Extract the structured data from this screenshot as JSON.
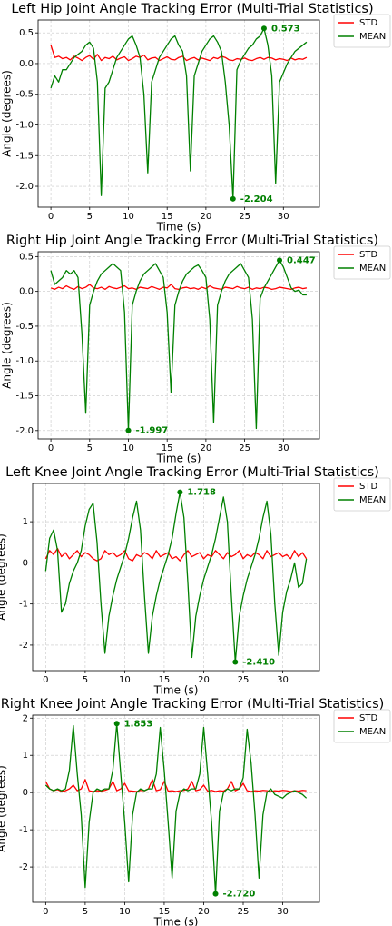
{
  "chart_data": [
    {
      "type": "line",
      "title": "Left Hip Joint Angle Tracking Error (Multi-Trial Statistics)",
      "x_label": "Time (s)",
      "y_label": "Angle (degrees)",
      "grid": true,
      "legend": "right",
      "xlim": [
        -1.65,
        34.65
      ],
      "xticks": [
        0,
        5,
        10,
        15,
        20,
        25,
        30
      ],
      "ylim": [
        -2.34,
        0.71
      ],
      "yticks": [
        0.5,
        {
          "value": 0,
          "label": "0.0"
        },
        -0.5,
        {
          "value": -1,
          "label": "-1.0"
        },
        -1.5,
        {
          "value": -2,
          "label": "-2.0"
        }
      ],
      "x": [
        0,
        0.5,
        1,
        1.5,
        2,
        2.5,
        3,
        3.5,
        4,
        4.5,
        5,
        5.5,
        6,
        6.5,
        7,
        7.5,
        8,
        8.5,
        9,
        9.5,
        10,
        10.5,
        11,
        11.5,
        12,
        12.5,
        13,
        13.5,
        14,
        14.5,
        15,
        15.5,
        16,
        16.5,
        17,
        17.5,
        18,
        18.5,
        19,
        19.5,
        20,
        20.5,
        21,
        21.5,
        22,
        22.5,
        23,
        23.5,
        24,
        24.5,
        25,
        25.5,
        26,
        26.5,
        27,
        27.5,
        28,
        28.5,
        29,
        29.5,
        30,
        30.5,
        31,
        31.5,
        32,
        32.5,
        33
      ],
      "series": [
        {
          "name": "STD",
          "color": "#ff0000",
          "values": [
            0.3,
            0.1,
            0.12,
            0.08,
            0.1,
            0.06,
            0.12,
            0.09,
            0.05,
            0.1,
            0.13,
            0.07,
            0.15,
            0.05,
            0.1,
            0.08,
            0.12,
            0.06,
            0.09,
            0.11,
            0.05,
            0.08,
            0.12,
            0.1,
            0.14,
            0.06,
            0.09,
            0.1,
            0.05,
            0.08,
            0.11,
            0.07,
            0.06,
            0.1,
            0.12,
            0.05,
            0.08,
            0.1,
            0.06,
            0.09,
            0.07,
            0.05,
            0.1,
            0.08,
            0.12,
            0.1,
            0.06,
            0.05,
            0.08,
            0.07,
            0.09,
            0.06,
            0.05,
            0.08,
            0.1,
            0.07,
            0.1,
            0.09,
            0.06,
            0.08,
            0.07,
            0.05,
            0.09,
            0.06,
            0.08,
            0.07,
            0.1
          ]
        },
        {
          "name": "MEAN",
          "color": "#008000",
          "values": [
            -0.4,
            -0.2,
            -0.3,
            -0.1,
            -0.1,
            0.0,
            0.1,
            0.15,
            0.2,
            0.3,
            0.35,
            0.25,
            -0.3,
            -2.15,
            -0.4,
            -0.3,
            -0.1,
            0.1,
            0.2,
            0.3,
            0.4,
            0.45,
            0.3,
            0.1,
            -0.5,
            -1.78,
            -0.3,
            -0.1,
            0.1,
            0.2,
            0.3,
            0.4,
            0.45,
            0.3,
            0.2,
            -0.2,
            -1.75,
            -0.2,
            0.0,
            0.2,
            0.3,
            0.4,
            0.45,
            0.35,
            0.2,
            -0.3,
            -1.0,
            -2.204,
            -0.1,
            0.05,
            0.15,
            0.25,
            0.3,
            0.4,
            0.45,
            0.573,
            0.3,
            -0.2,
            -1.95,
            -0.3,
            -0.15,
            0.0,
            0.1,
            0.2,
            0.25,
            0.3,
            0.35
          ]
        }
      ],
      "annotations": [
        {
          "x": 27.5,
          "y": 0.573
        },
        {
          "x": 23.5,
          "y": -2.204
        }
      ]
    },
    {
      "type": "line",
      "title": "Right Hip Joint Angle Tracking Error (Multi-Trial Statistics)",
      "x_label": "Time (s)",
      "y_label": "Angle (degrees)",
      "grid": true,
      "legend": "right",
      "xlim": [
        -1.65,
        34.65
      ],
      "xticks": [
        0,
        5,
        10,
        15,
        20,
        25,
        30
      ],
      "ylim": [
        -2.12,
        0.57
      ],
      "yticks": [
        0.5,
        {
          "value": 0,
          "label": "0.0"
        },
        -0.5,
        {
          "value": -1,
          "label": "-1.0"
        },
        -1.5,
        {
          "value": -2,
          "label": "-2.0"
        }
      ],
      "x": [
        0,
        0.5,
        1,
        1.5,
        2,
        2.5,
        3,
        3.5,
        4,
        4.5,
        5,
        5.5,
        6,
        6.5,
        7,
        7.5,
        8,
        8.5,
        9,
        9.5,
        10,
        10.5,
        11,
        11.5,
        12,
        12.5,
        13,
        13.5,
        14,
        14.5,
        15,
        15.5,
        16,
        16.5,
        17,
        17.5,
        18,
        18.5,
        19,
        19.5,
        20,
        20.5,
        21,
        21.5,
        22,
        22.5,
        23,
        23.5,
        24,
        24.5,
        25,
        25.5,
        26,
        26.5,
        27,
        27.5,
        28,
        28.5,
        29,
        29.5,
        30,
        30.5,
        31,
        31.5,
        32,
        32.5,
        33
      ],
      "series": [
        {
          "name": "STD",
          "color": "#ff0000",
          "values": [
            0.05,
            0.03,
            0.06,
            0.04,
            0.08,
            0.05,
            0.03,
            0.07,
            0.04,
            0.06,
            0.1,
            0.05,
            0.04,
            0.06,
            0.03,
            0.07,
            0.05,
            0.04,
            0.06,
            0.08,
            0.04,
            0.05,
            0.03,
            0.06,
            0.05,
            0.04,
            0.07,
            0.05,
            0.03,
            0.06,
            0.05,
            0.1,
            0.04,
            0.03,
            0.05,
            0.06,
            0.04,
            0.05,
            0.03,
            0.06,
            0.04,
            0.08,
            0.05,
            0.04,
            0.03,
            0.06,
            0.05,
            0.04,
            0.07,
            0.05,
            0.04,
            0.06,
            0.03,
            0.05,
            0.04,
            0.06,
            0.05,
            0.03,
            0.04,
            0.06,
            0.05,
            0.04,
            0.03,
            0.05,
            0.06,
            0.04,
            0.05
          ]
        },
        {
          "name": "MEAN",
          "color": "#008000",
          "values": [
            0.3,
            0.1,
            0.15,
            0.2,
            0.3,
            0.25,
            0.3,
            0.2,
            -0.6,
            -1.75,
            -0.2,
            0.0,
            0.15,
            0.25,
            0.3,
            0.35,
            0.4,
            0.35,
            0.3,
            -0.3,
            -1.997,
            -0.2,
            0.0,
            0.15,
            0.25,
            0.3,
            0.35,
            0.4,
            0.3,
            0.2,
            -0.3,
            -1.45,
            -0.2,
            0.0,
            0.15,
            0.25,
            0.3,
            0.35,
            0.38,
            0.3,
            0.2,
            -0.4,
            -1.88,
            -0.2,
            0.0,
            0.15,
            0.25,
            0.3,
            0.35,
            0.4,
            0.3,
            0.2,
            -0.4,
            -1.97,
            -0.1,
            0.05,
            0.15,
            0.25,
            0.35,
            0.447,
            0.35,
            0.2,
            0.05,
            0.0,
            0.02,
            -0.05,
            -0.05
          ]
        }
      ],
      "annotations": [
        {
          "x": 29.5,
          "y": 0.447
        },
        {
          "x": 10,
          "y": -1.997
        }
      ]
    },
    {
      "type": "line",
      "title": "Left Knee Joint Angle Tracking Error (Multi-Trial Statistics)",
      "x_label": "Time (s)",
      "y_label": "Angle (degrees)",
      "grid": true,
      "legend": "right",
      "xlim": [
        -1.65,
        34.65
      ],
      "xticks": [
        0,
        5,
        10,
        15,
        20,
        25,
        30
      ],
      "ylim": [
        -2.62,
        1.93
      ],
      "yticks": [
        1,
        0,
        -1,
        -2
      ],
      "x": [
        0,
        0.5,
        1,
        1.5,
        2,
        2.5,
        3,
        3.5,
        4,
        4.5,
        5,
        5.5,
        6,
        6.5,
        7,
        7.5,
        8,
        8.5,
        9,
        9.5,
        10,
        10.5,
        11,
        11.5,
        12,
        12.5,
        13,
        13.5,
        14,
        14.5,
        15,
        15.5,
        16,
        16.5,
        17,
        17.5,
        18,
        18.5,
        19,
        19.5,
        20,
        20.5,
        21,
        21.5,
        22,
        22.5,
        23,
        23.5,
        24,
        24.5,
        25,
        25.5,
        26,
        26.5,
        27,
        27.5,
        28,
        28.5,
        29,
        29.5,
        30,
        30.5,
        31,
        31.5,
        32,
        32.5,
        33
      ],
      "series": [
        {
          "name": "STD",
          "color": "#ff0000",
          "values": [
            0.1,
            0.3,
            0.2,
            0.35,
            0.15,
            0.25,
            0.1,
            0.2,
            0.3,
            0.15,
            0.25,
            0.2,
            0.1,
            0.05,
            0.1,
            0.3,
            0.2,
            0.25,
            0.15,
            0.2,
            0.3,
            0.1,
            0.05,
            0.2,
            0.15,
            0.25,
            0.2,
            0.1,
            0.3,
            0.15,
            0.2,
            0.25,
            0.1,
            0.15,
            0.05,
            0.2,
            0.3,
            0.15,
            0.2,
            0.25,
            0.1,
            0.2,
            0.15,
            0.3,
            0.2,
            0.1,
            0.25,
            0.15,
            0.2,
            0.3,
            0.1,
            0.2,
            0.15,
            0.25,
            0.2,
            0.1,
            0.3,
            0.15,
            0.2,
            0.25,
            0.15,
            0.2,
            0.1,
            0.3,
            0.15,
            0.25,
            0.1
          ]
        },
        {
          "name": "MEAN",
          "color": "#008000",
          "values": [
            -0.2,
            0.6,
            0.8,
            0.3,
            -1.2,
            -1.0,
            -0.5,
            -0.2,
            0.0,
            0.3,
            0.9,
            1.3,
            1.45,
            0.5,
            -1.0,
            -2.2,
            -1.3,
            -0.8,
            -0.4,
            -0.1,
            0.2,
            0.6,
            1.1,
            1.5,
            0.8,
            -0.8,
            -2.2,
            -1.3,
            -0.8,
            -0.4,
            -0.1,
            0.2,
            0.6,
            1.2,
            1.718,
            1.1,
            -0.5,
            -2.3,
            -1.3,
            -0.8,
            -0.4,
            -0.1,
            0.2,
            0.6,
            1.1,
            1.6,
            1.0,
            -0.8,
            -2.41,
            -1.3,
            -0.8,
            -0.4,
            -0.1,
            0.2,
            0.6,
            1.1,
            1.5,
            0.7,
            -1.0,
            -2.25,
            -1.2,
            -0.7,
            -0.4,
            0.0,
            -0.6,
            -0.5,
            0.1
          ]
        }
      ],
      "annotations": [
        {
          "x": 17,
          "y": 1.718
        },
        {
          "x": 24,
          "y": -2.41,
          "label": "-2.410"
        }
      ]
    },
    {
      "type": "line",
      "title": "Right Knee Joint Angle Tracking Error (Multi-Trial Statistics)",
      "x_label": "Time (s)",
      "y_label": "Angle (degrees)",
      "grid": true,
      "legend": "right",
      "xlim": [
        -1.65,
        34.65
      ],
      "xticks": [
        0,
        5,
        10,
        15,
        20,
        25,
        30
      ],
      "ylim": [
        -2.95,
        2.08
      ],
      "yticks": [
        2,
        1,
        0,
        -1,
        -2
      ],
      "x": [
        0,
        0.5,
        1,
        1.5,
        2,
        2.5,
        3,
        3.5,
        4,
        4.5,
        5,
        5.5,
        6,
        6.5,
        7,
        7.5,
        8,
        8.5,
        9,
        9.5,
        10,
        10.5,
        11,
        11.5,
        12,
        12.5,
        13,
        13.5,
        14,
        14.5,
        15,
        15.5,
        16,
        16.5,
        17,
        17.5,
        18,
        18.5,
        19,
        19.5,
        20,
        20.5,
        21,
        21.5,
        22,
        22.5,
        23,
        23.5,
        24,
        24.5,
        25,
        25.5,
        26,
        26.5,
        27,
        27.5,
        28,
        28.5,
        29,
        29.5,
        30,
        30.5,
        31,
        31.5,
        32,
        32.5,
        33
      ],
      "series": [
        {
          "name": "STD",
          "color": "#ff0000",
          "values": [
            0.3,
            0.1,
            0.05,
            0.08,
            0.03,
            0.05,
            0.1,
            0.2,
            0.05,
            0.1,
            0.35,
            0.05,
            0.03,
            0.05,
            0.04,
            0.06,
            0.1,
            0.3,
            0.05,
            0.1,
            0.25,
            0.05,
            0.04,
            0.03,
            0.06,
            0.05,
            0.1,
            0.35,
            0.05,
            0.08,
            0.3,
            0.04,
            0.05,
            0.03,
            0.05,
            0.06,
            0.1,
            0.3,
            0.05,
            0.08,
            0.2,
            0.04,
            0.06,
            0.03,
            0.05,
            0.04,
            0.1,
            0.3,
            0.05,
            0.1,
            0.25,
            0.05,
            0.03,
            0.05,
            0.04,
            0.06,
            0.05,
            0.03,
            0.05,
            0.04,
            0.06,
            0.05,
            0.03,
            0.05,
            0.04,
            0.06,
            0.05
          ]
        },
        {
          "name": "MEAN",
          "color": "#008000",
          "values": [
            0.2,
            0.1,
            0.05,
            0.1,
            0.05,
            0.1,
            0.6,
            1.8,
            0.5,
            -0.6,
            -2.55,
            -0.8,
            0.0,
            0.1,
            0.05,
            0.1,
            0.1,
            0.6,
            1.853,
            0.5,
            -0.8,
            -2.4,
            -0.6,
            0.0,
            0.1,
            0.05,
            0.1,
            0.1,
            0.5,
            1.75,
            0.6,
            -0.8,
            -2.3,
            -0.5,
            0.0,
            0.1,
            0.05,
            0.1,
            0.1,
            0.5,
            1.75,
            0.5,
            -0.8,
            -2.72,
            -0.5,
            0.0,
            0.1,
            0.05,
            0.1,
            0.1,
            0.4,
            1.7,
            0.8,
            -0.6,
            -2.3,
            -0.6,
            0.0,
            0.1,
            -0.05,
            -0.1,
            -0.15,
            -0.05,
            0.0,
            0.05,
            0.0,
            -0.05,
            -0.15
          ]
        }
      ],
      "annotations": [
        {
          "x": 9,
          "y": 1.853
        },
        {
          "x": 21.5,
          "y": -2.72,
          "label": "-2.720"
        }
      ]
    }
  ]
}
